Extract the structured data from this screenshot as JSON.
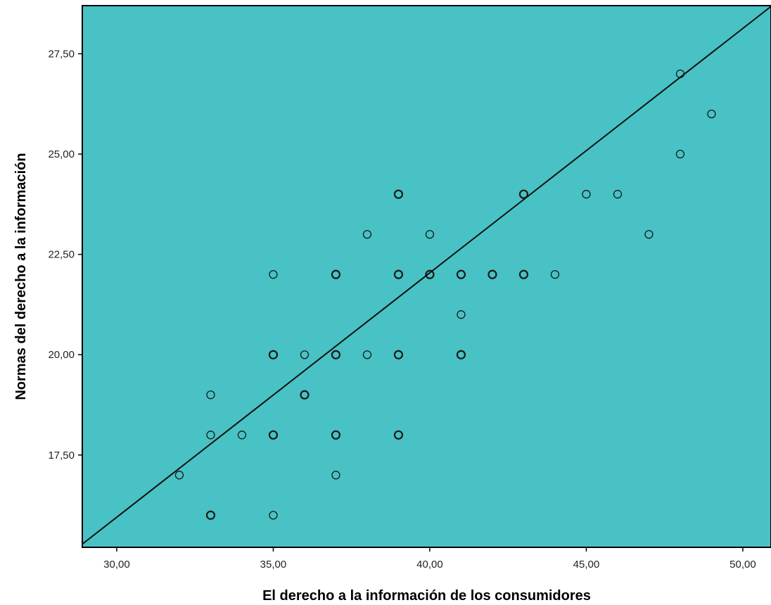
{
  "colors": {
    "plot_background": "#48C2C5",
    "marker_stroke": "#1a1a1a",
    "fit_line": "#111111",
    "frame": "#000000"
  },
  "chart_data": {
    "type": "scatter",
    "title": "",
    "xlabel": "El derecho a la información de los consumidores",
    "ylabel": "Normas del derecho a la información",
    "xlim": [
      28.9,
      50.9
    ],
    "ylim": [
      15.2,
      28.7
    ],
    "x_ticks": [
      30,
      35,
      40,
      45,
      50
    ],
    "x_tick_labels": [
      "30,00",
      "35,00",
      "40,00",
      "45,00",
      "50,00"
    ],
    "y_ticks": [
      17.5,
      20,
      22.5,
      25,
      27.5
    ],
    "y_tick_labels": [
      "17,50",
      "20,00",
      "22,50",
      "25,00",
      "27,50"
    ],
    "grid": false,
    "legend": "none",
    "marker": "open-circle",
    "fit_line": {
      "x": [
        28.9,
        50.9
      ],
      "y": [
        15.28,
        28.68
      ]
    },
    "points": [
      {
        "x": 32,
        "y": 17
      },
      {
        "x": 33,
        "y": 16
      },
      {
        "x": 33,
        "y": 18
      },
      {
        "x": 33,
        "y": 19
      },
      {
        "x": 34,
        "y": 18
      },
      {
        "x": 35,
        "y": 16
      },
      {
        "x": 35,
        "y": 18
      },
      {
        "x": 35,
        "y": 20
      },
      {
        "x": 35,
        "y": 22
      },
      {
        "x": 36,
        "y": 19
      },
      {
        "x": 36,
        "y": 20
      },
      {
        "x": 37,
        "y": 17
      },
      {
        "x": 37,
        "y": 18
      },
      {
        "x": 37,
        "y": 20
      },
      {
        "x": 37,
        "y": 22
      },
      {
        "x": 38,
        "y": 20
      },
      {
        "x": 38,
        "y": 23
      },
      {
        "x": 39,
        "y": 18
      },
      {
        "x": 39,
        "y": 20
      },
      {
        "x": 39,
        "y": 22
      },
      {
        "x": 39,
        "y": 24
      },
      {
        "x": 40,
        "y": 22
      },
      {
        "x": 40,
        "y": 23
      },
      {
        "x": 41,
        "y": 20
      },
      {
        "x": 41,
        "y": 21
      },
      {
        "x": 41,
        "y": 22
      },
      {
        "x": 42,
        "y": 22
      },
      {
        "x": 43,
        "y": 22
      },
      {
        "x": 43,
        "y": 24
      },
      {
        "x": 44,
        "y": 22
      },
      {
        "x": 45,
        "y": 24
      },
      {
        "x": 46,
        "y": 24
      },
      {
        "x": 47,
        "y": 23
      },
      {
        "x": 48,
        "y": 25
      },
      {
        "x": 48,
        "y": 27
      },
      {
        "x": 49,
        "y": 26
      }
    ],
    "overlapping_points": [
      {
        "x": 33,
        "y": 16
      },
      {
        "x": 35,
        "y": 18
      },
      {
        "x": 35,
        "y": 20
      },
      {
        "x": 36,
        "y": 19
      },
      {
        "x": 37,
        "y": 18
      },
      {
        "x": 37,
        "y": 20
      },
      {
        "x": 37,
        "y": 22
      },
      {
        "x": 39,
        "y": 18
      },
      {
        "x": 39,
        "y": 20
      },
      {
        "x": 39,
        "y": 22
      },
      {
        "x": 39,
        "y": 24
      },
      {
        "x": 40,
        "y": 22
      },
      {
        "x": 41,
        "y": 20
      },
      {
        "x": 41,
        "y": 22
      },
      {
        "x": 42,
        "y": 22
      },
      {
        "x": 43,
        "y": 22
      },
      {
        "x": 43,
        "y": 24
      }
    ]
  }
}
